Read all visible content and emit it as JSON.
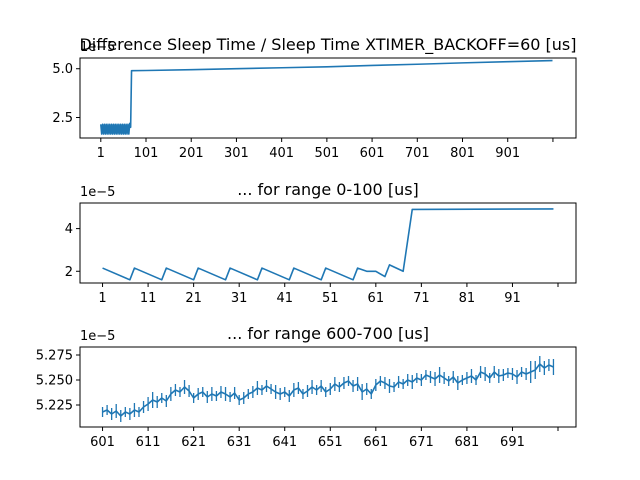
{
  "chart_data": [
    {
      "type": "line",
      "title": "Difference Sleep Time / Sleep Time XTIMER_BACKOFF=60 [us]",
      "offset_text": "1e−5",
      "xlim": [
        -45,
        1052
      ],
      "ylim": [
        1.45,
        5.55
      ],
      "xticks": [
        1,
        101,
        201,
        301,
        401,
        501,
        601,
        701,
        801,
        901,
        1001
      ],
      "xtick_labels": [
        "1",
        "101",
        "201",
        "301",
        "401",
        "501",
        "601",
        "701",
        "801",
        "901",
        ""
      ],
      "yticks": [
        2.5,
        5.0
      ],
      "ytick_labels": [
        "2.5",
        "5.0"
      ],
      "series": [
        {
          "x": [
            1,
            3,
            5,
            7,
            9,
            11,
            13,
            15,
            17,
            19,
            21,
            23,
            25,
            27,
            29,
            31,
            33,
            35,
            37,
            39,
            41,
            43,
            45,
            47,
            49,
            51,
            53,
            55,
            57,
            59,
            61,
            63,
            65,
            67,
            69,
            101,
            201,
            301,
            401,
            501,
            601,
            701,
            801,
            901,
            1000
          ],
          "y": [
            2.15,
            1.65,
            2.15,
            1.65,
            2.15,
            1.65,
            2.15,
            1.65,
            2.15,
            1.65,
            2.15,
            1.65,
            2.15,
            1.65,
            2.15,
            1.65,
            2.15,
            1.65,
            2.15,
            1.65,
            2.15,
            1.65,
            2.15,
            1.65,
            2.15,
            1.65,
            2.15,
            1.65,
            2.15,
            1.65,
            2.15,
            1.65,
            2.2,
            2.0,
            4.9,
            4.91,
            4.95,
            5.0,
            5.05,
            5.1,
            5.17,
            5.23,
            5.3,
            5.36,
            5.42
          ]
        }
      ]
    },
    {
      "type": "line",
      "title": "... for range 0-100 [us]",
      "offset_text": "1e−5",
      "xlim": [
        -3.95,
        104.95
      ],
      "ylim": [
        1.45,
        5.2
      ],
      "xticks": [
        1,
        11,
        21,
        31,
        41,
        51,
        61,
        71,
        81,
        91,
        101
      ],
      "xtick_labels": [
        "1",
        "11",
        "21",
        "31",
        "41",
        "51",
        "61",
        "71",
        "81",
        "91",
        ""
      ],
      "yticks": [
        2,
        4
      ],
      "ytick_labels": [
        "2",
        "4"
      ],
      "series": [
        {
          "x": [
            1,
            7,
            8,
            14,
            15,
            21,
            22,
            28,
            29,
            35,
            36,
            42,
            43,
            49,
            50,
            56,
            57,
            59,
            61,
            63,
            64,
            67,
            69,
            100
          ],
          "y": [
            2.15,
            1.6,
            2.15,
            1.6,
            2.15,
            1.6,
            2.15,
            1.6,
            2.15,
            1.6,
            2.15,
            1.6,
            2.15,
            1.6,
            2.15,
            1.6,
            2.15,
            2.0,
            2.0,
            1.75,
            2.3,
            2.0,
            4.9,
            4.92
          ]
        }
      ]
    },
    {
      "type": "line",
      "title": "... for range 600-700 [us]",
      "offset_text": "1e−5",
      "xlim": [
        596.05,
        704.95
      ],
      "ylim": [
        5.203,
        5.283
      ],
      "xticks": [
        601,
        611,
        621,
        631,
        641,
        651,
        661,
        671,
        681,
        691,
        701
      ],
      "xtick_labels": [
        "601",
        "611",
        "621",
        "631",
        "641",
        "651",
        "661",
        "671",
        "681",
        "691",
        ""
      ],
      "yticks": [
        5.225,
        5.25,
        5.275
      ],
      "ytick_labels": [
        "5.225",
        "5.250",
        "5.275"
      ],
      "series": [
        {
          "x": [
            601,
            602,
            603,
            604,
            605,
            606,
            607,
            608,
            609,
            610,
            611,
            612,
            613,
            614,
            615,
            616,
            617,
            618,
            619,
            620,
            621,
            622,
            623,
            624,
            625,
            626,
            627,
            628,
            629,
            630,
            631,
            632,
            633,
            634,
            635,
            636,
            637,
            638,
            639,
            640,
            641,
            642,
            643,
            644,
            645,
            646,
            647,
            648,
            649,
            650,
            651,
            652,
            653,
            654,
            655,
            656,
            657,
            658,
            659,
            660,
            661,
            662,
            663,
            664,
            665,
            666,
            667,
            668,
            669,
            670,
            671,
            672,
            673,
            674,
            675,
            676,
            677,
            678,
            679,
            680,
            681,
            682,
            683,
            684,
            685,
            686,
            687,
            688,
            689,
            690,
            691,
            692,
            693,
            694,
            695,
            696,
            697,
            698,
            699,
            700
          ],
          "y": [
            5.218,
            5.22,
            5.216,
            5.219,
            5.214,
            5.218,
            5.216,
            5.22,
            5.218,
            5.223,
            5.226,
            5.23,
            5.228,
            5.232,
            5.229,
            5.236,
            5.24,
            5.238,
            5.243,
            5.239,
            5.232,
            5.236,
            5.238,
            5.233,
            5.236,
            5.234,
            5.238,
            5.236,
            5.233,
            5.237,
            5.23,
            5.232,
            5.236,
            5.238,
            5.242,
            5.24,
            5.244,
            5.241,
            5.238,
            5.236,
            5.238,
            5.234,
            5.24,
            5.242,
            5.236,
            5.239,
            5.243,
            5.24,
            5.244,
            5.238,
            5.241,
            5.246,
            5.243,
            5.247,
            5.249,
            5.244,
            5.246,
            5.238,
            5.241,
            5.236,
            5.245,
            5.249,
            5.247,
            5.244,
            5.243,
            5.248,
            5.246,
            5.25,
            5.248,
            5.252,
            5.25,
            5.255,
            5.253,
            5.251,
            5.255,
            5.252,
            5.249,
            5.253,
            5.247,
            5.25,
            5.252,
            5.254,
            5.25,
            5.258,
            5.256,
            5.252,
            5.258,
            5.254,
            5.255,
            5.257,
            5.256,
            5.253,
            5.258,
            5.256,
            5.258,
            5.26,
            5.266,
            5.262,
            5.265,
            5.263
          ],
          "errors": [
            0.005,
            0.005,
            0.006,
            0.007,
            0.006,
            0.005,
            0.006,
            0.007,
            0.005,
            0.006,
            0.007,
            0.008,
            0.006,
            0.005,
            0.006,
            0.007,
            0.006,
            0.005,
            0.007,
            0.006,
            0.005,
            0.006,
            0.005,
            0.006,
            0.007,
            0.005,
            0.006,
            0.007,
            0.005,
            0.006,
            0.005,
            0.006,
            0.005,
            0.006,
            0.007,
            0.005,
            0.006,
            0.005,
            0.007,
            0.006,
            0.005,
            0.006,
            0.007,
            0.006,
            0.005,
            0.006,
            0.007,
            0.005,
            0.006,
            0.005,
            0.006,
            0.007,
            0.005,
            0.006,
            0.005,
            0.006,
            0.007,
            0.008,
            0.006,
            0.005,
            0.006,
            0.005,
            0.006,
            0.007,
            0.005,
            0.006,
            0.005,
            0.006,
            0.007,
            0.005,
            0.006,
            0.005,
            0.006,
            0.007,
            0.008,
            0.006,
            0.005,
            0.006,
            0.007,
            0.005,
            0.006,
            0.007,
            0.005,
            0.006,
            0.007,
            0.005,
            0.006,
            0.007,
            0.006,
            0.005,
            0.006,
            0.007,
            0.005,
            0.006,
            0.011,
            0.009,
            0.008,
            0.007,
            0.006,
            0.008
          ]
        }
      ]
    }
  ]
}
